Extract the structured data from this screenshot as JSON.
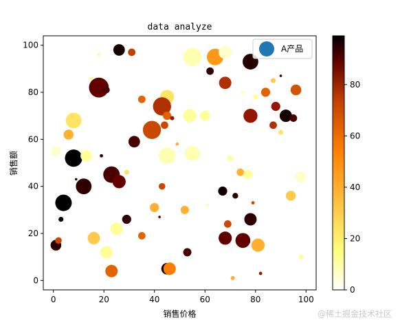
{
  "chart_data": {
    "type": "scatter",
    "title": "data analyze",
    "xlabel": "销售价格",
    "ylabel": "销售额",
    "xlim": [
      -4,
      104
    ],
    "ylim": [
      -4,
      104
    ],
    "xticks": [
      0,
      20,
      40,
      60,
      80,
      100
    ],
    "yticks": [
      0,
      20,
      40,
      60,
      80,
      100
    ],
    "legend": {
      "label": "A产品",
      "placement": "top-right",
      "marker_color": "#1f77b4"
    },
    "colorbar": {
      "colormap": "afmhot_r",
      "range": [
        0,
        99
      ],
      "ticks": [
        0,
        20,
        40,
        60,
        80
      ]
    },
    "points": [
      [
        26,
        98,
        95,
        14
      ],
      [
        18,
        96,
        25,
        3
      ],
      [
        31,
        97,
        62,
        9
      ],
      [
        55,
        95,
        15,
        22
      ],
      [
        64,
        95,
        45,
        20
      ],
      [
        68,
        97,
        10,
        16
      ],
      [
        78,
        93,
        92,
        19
      ],
      [
        15,
        86,
        20,
        4
      ],
      [
        18,
        82,
        80,
        24
      ],
      [
        21,
        81,
        85,
        8
      ],
      [
        35,
        77,
        55,
        9
      ],
      [
        45,
        78,
        30,
        17
      ],
      [
        43,
        74,
        65,
        22
      ],
      [
        62,
        89,
        90,
        9
      ],
      [
        68,
        84,
        65,
        15
      ],
      [
        75,
        80,
        12,
        5
      ],
      [
        80,
        78,
        20,
        6
      ],
      [
        84,
        80,
        55,
        11
      ],
      [
        87,
        85,
        35,
        6
      ],
      [
        90,
        87,
        85,
        3
      ],
      [
        96,
        81,
        58,
        13
      ],
      [
        45,
        70,
        55,
        10
      ],
      [
        44,
        66,
        60,
        9
      ],
      [
        39,
        64,
        60,
        22
      ],
      [
        47,
        69,
        70,
        5
      ],
      [
        54,
        70,
        20,
        16
      ],
      [
        60,
        70,
        20,
        12
      ],
      [
        8,
        68,
        30,
        19
      ],
      [
        6,
        62,
        40,
        12
      ],
      [
        78,
        70,
        70,
        17
      ],
      [
        87,
        66,
        65,
        9
      ],
      [
        88,
        74,
        70,
        11
      ],
      [
        90,
        63,
        30,
        6
      ],
      [
        92,
        70,
        95,
        15
      ],
      [
        95,
        69,
        85,
        9
      ],
      [
        1,
        55,
        10,
        12
      ],
      [
        8,
        52,
        99,
        21
      ],
      [
        13,
        53,
        20,
        14
      ],
      [
        19,
        53,
        90,
        4
      ],
      [
        32,
        59,
        85,
        14
      ],
      [
        45,
        53,
        15,
        20
      ],
      [
        55,
        54,
        15,
        18
      ],
      [
        49,
        58,
        40,
        4
      ],
      [
        70,
        52,
        15,
        8
      ],
      [
        74,
        46,
        40,
        9
      ],
      [
        77,
        45,
        20,
        11
      ],
      [
        98,
        44,
        10,
        14
      ],
      [
        94,
        36,
        35,
        12
      ],
      [
        67,
        38,
        95,
        11
      ],
      [
        4,
        33,
        99,
        20
      ],
      [
        12,
        40,
        90,
        19
      ],
      [
        23,
        45,
        85,
        20
      ],
      [
        26,
        42,
        80,
        16
      ],
      [
        29,
        46,
        30,
        6
      ],
      [
        9,
        43,
        90,
        3
      ],
      [
        3,
        26,
        99,
        6
      ],
      [
        25,
        22,
        20,
        15
      ],
      [
        29,
        26,
        90,
        11
      ],
      [
        40,
        31,
        40,
        11
      ],
      [
        43,
        40,
        60,
        8
      ],
      [
        42,
        27,
        80,
        3
      ],
      [
        52,
        30,
        40,
        10
      ],
      [
        61,
        32,
        20,
        3
      ],
      [
        72,
        36,
        90,
        7
      ],
      [
        69,
        24,
        60,
        9
      ],
      [
        78,
        26,
        90,
        15
      ],
      [
        1,
        15,
        90,
        13
      ],
      [
        2,
        17,
        60,
        8
      ],
      [
        16,
        18,
        35,
        15
      ],
      [
        21,
        12,
        20,
        15
      ],
      [
        23,
        4,
        55,
        15
      ],
      [
        35,
        19,
        55,
        9
      ],
      [
        45,
        5,
        95,
        14
      ],
      [
        46,
        5,
        50,
        15
      ],
      [
        53,
        12,
        85,
        10
      ],
      [
        68,
        18,
        80,
        16
      ],
      [
        75,
        17,
        80,
        18
      ],
      [
        81,
        15,
        40,
        16
      ],
      [
        82,
        3,
        70,
        4
      ],
      [
        71,
        1,
        40,
        5
      ],
      [
        98,
        10,
        20,
        6
      ],
      [
        79,
        33,
        60,
        4
      ]
    ]
  }
}
